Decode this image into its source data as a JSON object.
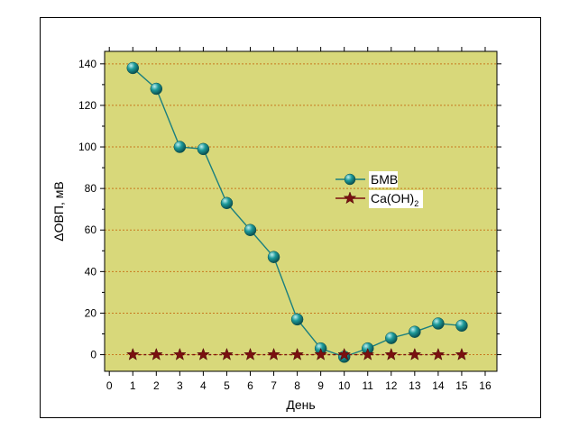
{
  "chart_data": {
    "type": "line",
    "xlabel": "День",
    "ylabel": "ΔОВП, мВ",
    "xlim": [
      -0.2,
      16.5
    ],
    "ylim": [
      -8,
      146
    ],
    "xticks": [
      0,
      1,
      2,
      3,
      4,
      5,
      6,
      7,
      8,
      9,
      10,
      11,
      12,
      13,
      14,
      15,
      16
    ],
    "yticks": [
      0,
      20,
      40,
      60,
      80,
      100,
      120,
      140
    ],
    "grid": "horizontal dotted",
    "plot_background": "#d8d87a",
    "legend_position": "right-middle",
    "series": [
      {
        "name": "БМВ",
        "marker": "sphere",
        "color": "#1a7f7f",
        "x": [
          1,
          2,
          3,
          4,
          5,
          6,
          7,
          8,
          9,
          10,
          11,
          12,
          13,
          14,
          15
        ],
        "values": [
          138,
          128,
          100,
          99,
          73,
          60,
          47,
          17,
          3,
          -1,
          3,
          8,
          11,
          15,
          14
        ]
      },
      {
        "name": "Ca(OH)",
        "name_subscript": "2",
        "marker": "star",
        "color": "#7a1010",
        "x": [
          1,
          2,
          3,
          4,
          5,
          6,
          7,
          8,
          9,
          10,
          11,
          12,
          13,
          14,
          15
        ],
        "values": [
          0,
          0,
          0,
          0,
          0,
          0,
          0,
          0,
          0,
          0,
          0,
          0,
          0,
          0,
          0
        ]
      }
    ]
  }
}
